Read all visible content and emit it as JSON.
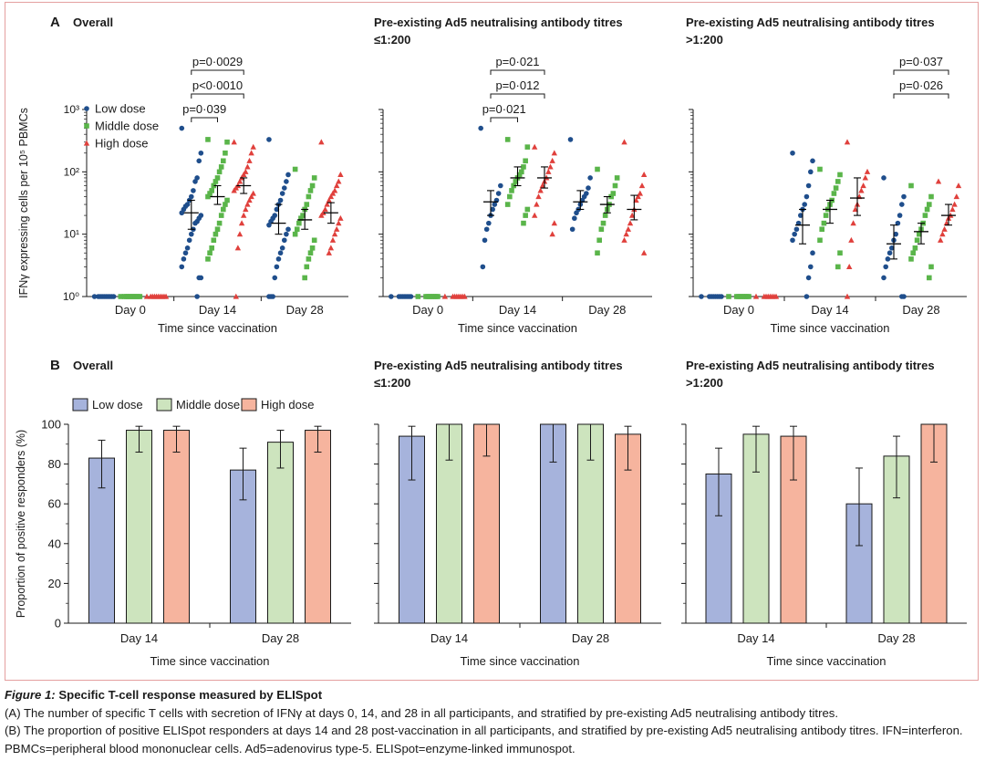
{
  "caption": {
    "figure_label": "Figure 1:",
    "title": " Specific T-cell response measured by ELISpot",
    "line_a": "(A) The number of specific T cells with secretion of IFNγ at days 0, 14, and 28 in all participants, and stratified by pre-existing Ad5 neutralising antibody titres.",
    "line_b": "(B) The proportion of positive ELISpot responders at days 14 and 28 post-vaccination in all participants, and stratified by pre-existing Ad5 neutralising antibody titres. IFN=interferon. PBMCs=peripheral blood mononuclear cells. Ad5=adenovirus type-5. ELISpot=enzyme-linked immunospot."
  },
  "colors": {
    "low_dose": "#1f4e8c",
    "middle_dose": "#5ab54a",
    "high_dose": "#e0403c",
    "bar_low": "#a6b3dc",
    "bar_middle": "#cde4be",
    "bar_high": "#f6b49e",
    "frame": "#e4a0a0"
  },
  "chart_data": [
    {
      "type": "scatter",
      "panel_letter": "A",
      "title_lines": [
        "Overall"
      ],
      "ylabel": "IFNγ expressing cells per 10⁵ PBMCs",
      "yscale": "log",
      "ylim": [
        1,
        1000
      ],
      "ytick_labels": [
        "10⁰",
        "10¹",
        "10²",
        "10³"
      ],
      "xlabel": "Time since vaccination",
      "categories": [
        "Day 0",
        "Day 14",
        "Day 28"
      ],
      "legend": [
        "Low dose",
        "Middle dose",
        "High dose"
      ],
      "legend_placement": "top-left",
      "series": [
        {
          "name": "Low dose",
          "marker": "circle",
          "color": "#1f4e8c",
          "points": [
            [
              1,
              1,
              1,
              1,
              1,
              1,
              1,
              1,
              1,
              1
            ],
            [
              500,
              200,
              150,
              80,
              70,
              50,
              40,
              35,
              30,
              28,
              25,
              22,
              20,
              18,
              16,
              15,
              12,
              10,
              8,
              6,
              5,
              4,
              3,
              2,
              2,
              1
            ],
            [
              330,
              90,
              70,
              55,
              45,
              35,
              30,
              25,
              20,
              18,
              16,
              14,
              12,
              10,
              8,
              6,
              5,
              4,
              3,
              2,
              1,
              1,
              1
            ]
          ],
          "medians": [
            null,
            22,
            15
          ],
          "ci": [
            null,
            [
              12,
              35
            ],
            [
              10,
              30
            ]
          ]
        },
        {
          "name": "Middle dose",
          "marker": "square",
          "color": "#5ab54a",
          "points": [
            [
              1,
              1,
              1,
              1,
              1,
              1,
              1,
              1,
              1,
              1
            ],
            [
              330,
              300,
              200,
              150,
              120,
              100,
              80,
              70,
              60,
              50,
              45,
              40,
              35,
              30,
              25,
              20,
              15,
              12,
              10,
              8,
              6,
              5,
              4
            ],
            [
              110,
              80,
              60,
              50,
              40,
              30,
              25,
              20,
              18,
              15,
              12,
              10,
              8,
              6,
              5,
              4,
              3,
              2
            ]
          ],
          "medians": [
            null,
            40,
            17
          ],
          "ci": [
            null,
            [
              30,
              60
            ],
            [
              12,
              25
            ]
          ]
        },
        {
          "name": "High dose",
          "marker": "triangle",
          "color": "#e0403c",
          "points": [
            [
              1,
              1,
              1,
              1,
              1,
              1,
              1,
              1,
              1,
              1
            ],
            [
              300,
              250,
              200,
              150,
              120,
              100,
              90,
              80,
              70,
              60,
              55,
              50,
              45,
              40,
              35,
              30,
              25,
              20,
              15,
              10,
              6,
              1
            ],
            [
              300,
              90,
              70,
              60,
              50,
              45,
              40,
              35,
              30,
              25,
              22,
              20,
              18,
              15,
              12,
              10,
              8,
              6,
              5
            ]
          ],
          "medians": [
            null,
            60,
            22
          ],
          "ci": [
            null,
            [
              45,
              80
            ],
            [
              15,
              32
            ]
          ]
        }
      ],
      "annotations": [
        {
          "text": "p=0·039",
          "day": 1,
          "from": 0,
          "to": 1,
          "level": 0
        },
        {
          "text": "p<0·0010",
          "day": 1,
          "from": 0,
          "to": 2,
          "level": 1
        },
        {
          "text": "p=0·0029",
          "day": 1,
          "from": 0,
          "to": 2,
          "level": 2
        }
      ]
    },
    {
      "type": "scatter",
      "title_lines": [
        "Pre-existing Ad5 neutralising antibody titres",
        "≤1:200"
      ],
      "yscale": "log",
      "ylim": [
        1,
        1000
      ],
      "xlabel": "Time since vaccination",
      "categories": [
        "Day 0",
        "Day 14",
        "Day 28"
      ],
      "series": [
        {
          "name": "Low dose",
          "marker": "circle",
          "color": "#1f4e8c",
          "points": [
            [
              1,
              1,
              1,
              1,
              1,
              1,
              1,
              1
            ],
            [
              500,
              60,
              45,
              35,
              30,
              25,
              20,
              15,
              12,
              8,
              3
            ],
            [
              330,
              80,
              55,
              45,
              40,
              35,
              30,
              25,
              22,
              18,
              12
            ]
          ],
          "medians": [
            null,
            33,
            33
          ],
          "ci": [
            null,
            [
              20,
              50
            ],
            [
              25,
              50
            ]
          ]
        },
        {
          "name": "Middle dose",
          "marker": "square",
          "color": "#5ab54a",
          "points": [
            [
              1,
              1,
              1,
              1,
              1,
              1,
              1,
              1
            ],
            [
              330,
              250,
              150,
              120,
              100,
              90,
              80,
              70,
              60,
              50,
              40,
              30,
              25,
              20,
              15
            ],
            [
              110,
              80,
              60,
              45,
              40,
              30,
              25,
              20,
              15,
              12,
              8,
              5
            ]
          ],
          "medians": [
            null,
            80,
            30
          ],
          "ci": [
            null,
            [
              60,
              120
            ],
            [
              22,
              40
            ]
          ]
        },
        {
          "name": "High dose",
          "marker": "triangle",
          "color": "#e0403c",
          "points": [
            [
              1,
              1,
              1,
              1,
              1,
              1,
              1,
              1
            ],
            [
              250,
              200,
              150,
              120,
              100,
              80,
              70,
              60,
              50,
              40,
              30,
              20,
              15,
              10
            ],
            [
              300,
              90,
              60,
              45,
              40,
              35,
              25,
              20,
              15,
              12,
              10,
              8,
              5
            ]
          ],
          "medians": [
            null,
            80,
            25
          ],
          "ci": [
            null,
            [
              55,
              120
            ],
            [
              17,
              42
            ]
          ]
        }
      ],
      "annotations": [
        {
          "text": "p=0·021",
          "day": 1,
          "from": 0,
          "to": 1,
          "level": 0
        },
        {
          "text": "p=0·012",
          "day": 1,
          "from": 0,
          "to": 2,
          "level": 1
        },
        {
          "text": "p=0·021",
          "day": 1,
          "from": 0,
          "to": 2,
          "level": 2
        }
      ]
    },
    {
      "type": "scatter",
      "title_lines": [
        "Pre-existing Ad5 neutralising antibody titres",
        ">1:200"
      ],
      "yscale": "log",
      "ylim": [
        1,
        1000
      ],
      "xlabel": "Time since vaccination",
      "categories": [
        "Day 0",
        "Day 14",
        "Day 28"
      ],
      "series": [
        {
          "name": "Low dose",
          "marker": "circle",
          "color": "#1f4e8c",
          "points": [
            [
              1,
              1,
              1,
              1,
              1,
              1,
              1,
              1
            ],
            [
              200,
              150,
              100,
              60,
              40,
              30,
              25,
              20,
              15,
              12,
              10,
              8,
              5,
              3,
              2,
              1
            ],
            [
              80,
              40,
              30,
              20,
              15,
              10,
              8,
              6,
              5,
              4,
              3,
              2,
              1,
              1
            ]
          ],
          "medians": [
            null,
            14,
            7
          ],
          "ci": [
            null,
            [
              7,
              25
            ],
            [
              4,
              14
            ]
          ]
        },
        {
          "name": "Middle dose",
          "marker": "square",
          "color": "#5ab54a",
          "points": [
            [
              1,
              1,
              1,
              1,
              1,
              1,
              1,
              1
            ],
            [
              110,
              90,
              70,
              55,
              45,
              35,
              30,
              25,
              20,
              15,
              12,
              8,
              5,
              3
            ],
            [
              60,
              40,
              30,
              25,
              20,
              15,
              12,
              10,
              8,
              6,
              5,
              4,
              3,
              2
            ]
          ],
          "medians": [
            null,
            25,
            11
          ],
          "ci": [
            null,
            [
              15,
              35
            ],
            [
              7,
              15
            ]
          ]
        },
        {
          "name": "High dose",
          "marker": "triangle",
          "color": "#e0403c",
          "points": [
            [
              1,
              1,
              1,
              1,
              1,
              1,
              1,
              1
            ],
            [
              300,
              100,
              80,
              60,
              50,
              40,
              30,
              25,
              15,
              8,
              3,
              1
            ],
            [
              70,
              60,
              40,
              30,
              25,
              20,
              18,
              15,
              12,
              10,
              8
            ]
          ],
          "medians": [
            null,
            38,
            20
          ],
          "ci": [
            null,
            [
              20,
              80
            ],
            [
              14,
              30
            ]
          ]
        }
      ],
      "annotations": [
        {
          "text": "p=0·026",
          "day": 2,
          "from": 0,
          "to": 2,
          "level": 1
        },
        {
          "text": "p=0·037",
          "day": 2,
          "from": 0,
          "to": 2,
          "level": 2
        }
      ]
    },
    {
      "type": "bar",
      "panel_letter": "B",
      "title_lines": [
        "Overall"
      ],
      "ylabel": "Proportion of positive responders (%)",
      "ylim": [
        0,
        100
      ],
      "yticks": [
        0,
        20,
        40,
        60,
        80,
        100
      ],
      "xlabel": "Time since vaccination",
      "categories": [
        "Day 14",
        "Day 28"
      ],
      "legend": [
        "Low dose",
        "Middle dose",
        "High dose"
      ],
      "legend_placement": "top",
      "series": [
        {
          "name": "Low dose",
          "values": [
            83,
            77
          ],
          "ci": [
            [
              68,
              92
            ],
            [
              62,
              88
            ]
          ]
        },
        {
          "name": "Middle dose",
          "values": [
            97,
            91
          ],
          "ci": [
            [
              86,
              99
            ],
            [
              78,
              97
            ]
          ]
        },
        {
          "name": "High dose",
          "values": [
            97,
            97
          ],
          "ci": [
            [
              86,
              99
            ],
            [
              86,
              99
            ]
          ]
        }
      ]
    },
    {
      "type": "bar",
      "title_lines": [
        "Pre-existing Ad5 neutralising antibody titres",
        "≤1:200"
      ],
      "ylim": [
        0,
        100
      ],
      "xlabel": "Time since vaccination",
      "categories": [
        "Day 14",
        "Day 28"
      ],
      "series": [
        {
          "name": "Low dose",
          "values": [
            94,
            100
          ],
          "ci": [
            [
              72,
              99
            ],
            [
              81,
              100
            ]
          ]
        },
        {
          "name": "Middle dose",
          "values": [
            100,
            100
          ],
          "ci": [
            [
              82,
              100
            ],
            [
              82,
              100
            ]
          ]
        },
        {
          "name": "High dose",
          "values": [
            100,
            95
          ],
          "ci": [
            [
              84,
              100
            ],
            [
              77,
              99
            ]
          ]
        }
      ]
    },
    {
      "type": "bar",
      "title_lines": [
        "Pre-existing Ad5 neutralising antibody titres",
        ">1:200"
      ],
      "ylim": [
        0,
        100
      ],
      "xlabel": "Time since vaccination",
      "categories": [
        "Day 14",
        "Day 28"
      ],
      "series": [
        {
          "name": "Low dose",
          "values": [
            75,
            60
          ],
          "ci": [
            [
              54,
              88
            ],
            [
              39,
              78
            ]
          ]
        },
        {
          "name": "Middle dose",
          "values": [
            95,
            84
          ],
          "ci": [
            [
              76,
              99
            ],
            [
              63,
              94
            ]
          ]
        },
        {
          "name": "High dose",
          "values": [
            94,
            100
          ],
          "ci": [
            [
              72,
              99
            ],
            [
              81,
              100
            ]
          ]
        }
      ]
    }
  ]
}
